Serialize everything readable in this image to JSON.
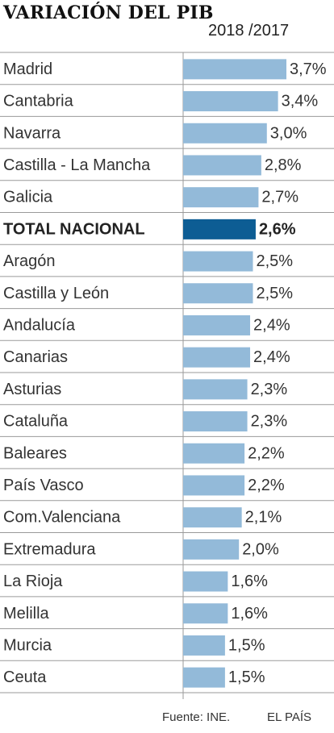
{
  "header": {
    "title": "VARIACIÓN DEL PIB",
    "subtitle": "2018 /2017"
  },
  "chart_data": {
    "type": "bar",
    "orientation": "horizontal",
    "title": "VARIACIÓN DEL PIB",
    "subtitle": "2018 /2017",
    "categories": [
      "Madrid",
      "Cantabria",
      "Navarra",
      "Castilla - La Mancha",
      "Galicia",
      "TOTAL NACIONAL",
      "Aragón",
      "Castilla y León",
      "Andalucía",
      "Canarias",
      "Asturias",
      "Cataluña",
      "Baleares",
      "País Vasco",
      "Com.Valenciana",
      "Extremadura",
      "La Rioja",
      "Melilla",
      "Murcia",
      "Ceuta"
    ],
    "values": [
      3.7,
      3.4,
      3.0,
      2.8,
      2.7,
      2.6,
      2.5,
      2.5,
      2.4,
      2.4,
      2.3,
      2.3,
      2.2,
      2.2,
      2.1,
      2.0,
      1.6,
      1.6,
      1.5,
      1.5
    ],
    "value_labels": [
      "3,7%",
      "3,4%",
      "3,0%",
      "2,8%",
      "2,7%",
      "2,6%",
      "2,5%",
      "2,5%",
      "2,4%",
      "2,4%",
      "2,3%",
      "2,3%",
      "2,2%",
      "2,2%",
      "2,1%",
      "2,0%",
      "1,6%",
      "1,6%",
      "1,5%",
      "1,5%"
    ],
    "highlight": "TOTAL NACIONAL",
    "colors": {
      "bar": "#93bad9",
      "highlight": "#0d5d94",
      "gridline": "#9a9a9a"
    },
    "xlim": [
      0,
      3.7
    ]
  },
  "footer": {
    "source": "Fuente: INE.",
    "brand": "EL PAÍS"
  }
}
